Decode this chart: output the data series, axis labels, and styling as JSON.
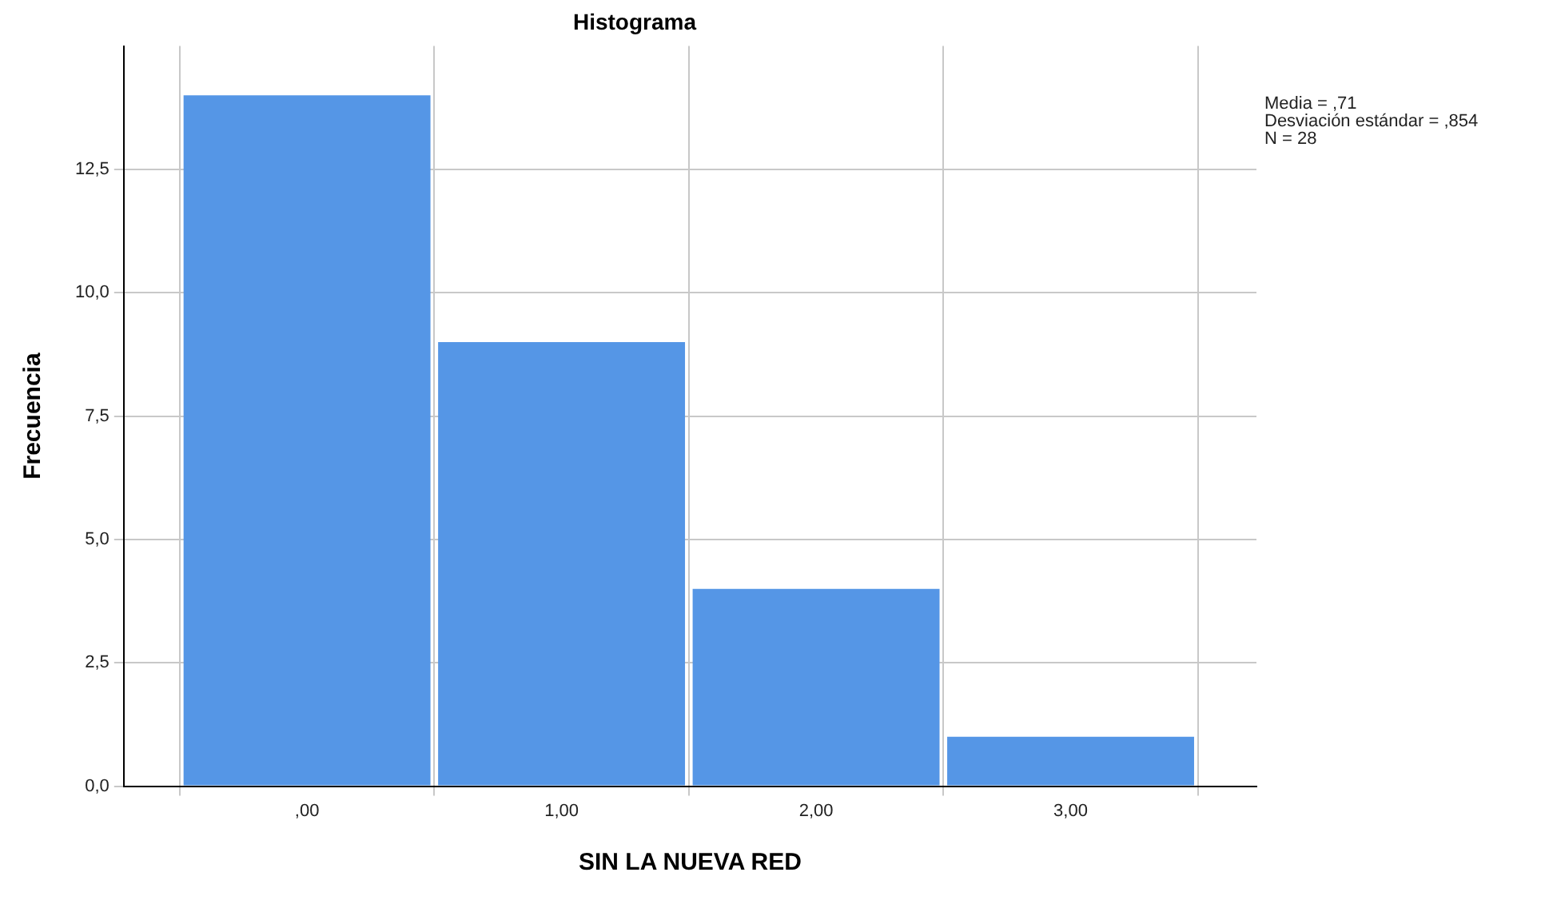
{
  "chart_data": {
    "type": "histogram",
    "title": "Histograma",
    "xlabel": "SIN LA NUEVA RED",
    "ylabel": "Frecuencia",
    "bins": [
      -0.5,
      0.5,
      1.5,
      2.5,
      3.5
    ],
    "values": [
      14,
      9,
      4,
      1
    ],
    "color": "#5596e6",
    "xlim": [
      -0.72,
      3.73
    ],
    "xticks": [
      {
        "value": 0,
        "label": ",00"
      },
      {
        "value": 1,
        "label": "1,00"
      },
      {
        "value": 2,
        "label": "2,00"
      },
      {
        "value": 3,
        "label": "3,00"
      }
    ],
    "ylim": [
      0,
      15
    ],
    "yticks": [
      {
        "value": 0,
        "label": "0,0"
      },
      {
        "value": 2.5,
        "label": "2,5"
      },
      {
        "value": 5,
        "label": "5,0"
      },
      {
        "value": 7.5,
        "label": "7,5"
      },
      {
        "value": 10,
        "label": "10,0"
      },
      {
        "value": 12.5,
        "label": "12,5"
      }
    ],
    "grid": true,
    "legend": false,
    "annotations": [
      "Media = ,71",
      "Desviación estándar = ,854",
      "N = 28"
    ]
  }
}
